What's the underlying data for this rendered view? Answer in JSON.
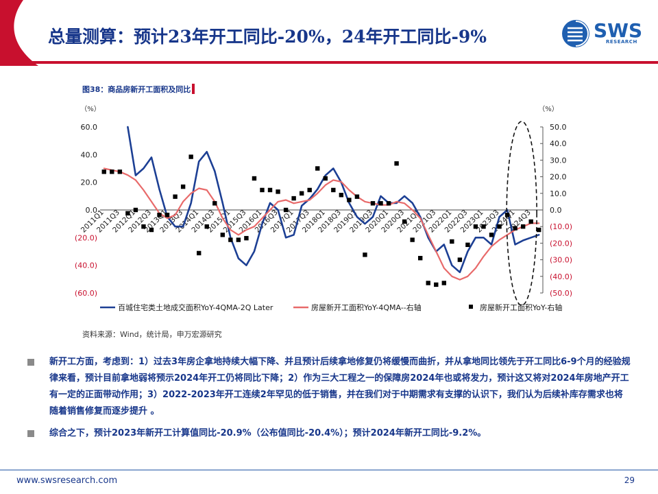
{
  "header": {
    "title": "总量测算：预计23年开工同比-20%，24年开工同比-9%",
    "logo_text": "SWS",
    "logo_subtext": "RESEARCH",
    "brand_color": "#1f5fb0",
    "accent_color": "#c8102e"
  },
  "figure": {
    "caption": "图38：商品房新开工面积及同比",
    "source": "资料来源：Wind，统计局，申万宏源研究"
  },
  "chart_data": {
    "type": "line",
    "title": "",
    "xlabel": "",
    "left_axis": {
      "unit": "（%）",
      "ylim": [
        -60,
        60
      ],
      "ticks": [
        60,
        40,
        20,
        0,
        -20,
        -40,
        -60
      ],
      "tick_labels": [
        "60.0",
        "40.0",
        "20.0",
        "0.0",
        "(20.0)",
        "(40.0)",
        "(60.0)"
      ]
    },
    "right_axis": {
      "unit": "（%）",
      "ylim": [
        -50,
        50
      ],
      "ticks": [
        50,
        40,
        30,
        20,
        10,
        0,
        -10,
        -20,
        -30,
        -40,
        -50
      ],
      "tick_labels": [
        "50.0",
        "40.0",
        "30.0",
        "20.0",
        "10.0",
        "0.0",
        "(10.0)",
        "(20.0)",
        "(30.0)",
        "(40.0)",
        "(50.0)"
      ]
    },
    "x_tick_labels": [
      "2011Q1",
      "2011Q3",
      "2012Q1",
      "2012Q3",
      "2013Q1",
      "2013Q3",
      "2014Q1",
      "2014Q3",
      "2015Q1",
      "2015Q3",
      "2016Q1",
      "2016Q3",
      "2017Q1",
      "2017Q3",
      "2018Q1",
      "2018Q3",
      "2019Q1",
      "2019Q3",
      "2020Q1",
      "2020Q3",
      "2021Q1",
      "2021Q3",
      "2022Q1",
      "2022Q3",
      "2023Q1",
      "2023Q3",
      "2024Q1",
      "2024Q3"
    ],
    "x_quarters": 56,
    "legend_position": "bottom",
    "series": [
      {
        "name": "百城住宅类土地成交面积YoY-4QMA-2Q Later",
        "axis": "left",
        "style": "line",
        "color": "#1c3f94",
        "x": [
          3,
          4,
          5,
          6,
          7,
          8,
          9,
          10,
          11,
          12,
          13,
          14,
          15,
          16,
          17,
          18,
          19,
          20,
          21,
          22,
          23,
          24,
          25,
          26,
          27,
          28,
          29,
          30,
          31,
          32,
          33,
          34,
          35,
          36,
          37,
          38,
          39,
          40,
          41,
          42,
          43,
          44,
          45,
          46,
          47,
          48,
          49,
          50,
          51,
          52,
          53,
          54,
          55
        ],
        "y": [
          60,
          25,
          30,
          38,
          15,
          -5,
          -12,
          -12,
          5,
          35,
          42,
          28,
          5,
          -20,
          -35,
          -40,
          -30,
          -10,
          5,
          0,
          -20,
          -18,
          3,
          8,
          15,
          25,
          30,
          20,
          5,
          -5,
          -10,
          -5,
          10,
          5,
          5,
          10,
          5,
          -5,
          -20,
          -30,
          -25,
          -40,
          -45,
          -30,
          -20,
          -20,
          -25,
          -5,
          0,
          -25,
          -22,
          -20,
          -18
        ]
      },
      {
        "name": "房屋新开工面积YoY-4QMA--右轴",
        "axis": "right",
        "style": "line",
        "color": "#e86a6a",
        "x": [
          0,
          1,
          2,
          3,
          4,
          5,
          6,
          7,
          8,
          9,
          10,
          11,
          12,
          13,
          14,
          15,
          16,
          17,
          18,
          19,
          20,
          21,
          22,
          23,
          24,
          25,
          26,
          27,
          28,
          29,
          30,
          31,
          32,
          33,
          34,
          35,
          36,
          37,
          38,
          39,
          40,
          41,
          42,
          43,
          44,
          45,
          46,
          47,
          48,
          49,
          50,
          51,
          52,
          53,
          54,
          55
        ],
        "y": [
          25,
          24,
          23,
          21,
          18,
          12,
          5,
          -2,
          -5,
          -3,
          5,
          10,
          13,
          12,
          5,
          -5,
          -12,
          -15,
          -12,
          -10,
          -5,
          0,
          5,
          6,
          4,
          5,
          6,
          10,
          15,
          18,
          17,
          12,
          8,
          5,
          4,
          3,
          3,
          5,
          4,
          0,
          -5,
          -15,
          -25,
          -35,
          -40,
          -42,
          -40,
          -35,
          -28,
          -22,
          -18,
          -15,
          -12,
          -10,
          -8,
          -8
        ]
      },
      {
        "name": "房屋新开工面积YoY-右轴",
        "axis": "right",
        "style": "scatter",
        "color": "#000000",
        "x": [
          0,
          1,
          2,
          3,
          4,
          5,
          6,
          7,
          8,
          9,
          10,
          11,
          12,
          13,
          14,
          15,
          16,
          17,
          18,
          19,
          20,
          21,
          22,
          23,
          24,
          25,
          26,
          27,
          28,
          29,
          30,
          31,
          32,
          33,
          34,
          35,
          36,
          37,
          38,
          39,
          40,
          41,
          42,
          43,
          44,
          45,
          46,
          47,
          48,
          49,
          50,
          51,
          52,
          53,
          54,
          55
        ],
        "y": [
          23,
          23,
          23,
          -2,
          0,
          -10,
          -12,
          -3,
          -3,
          8,
          14,
          32,
          -26,
          -10,
          4,
          -15,
          -18,
          -18,
          -17,
          19,
          12,
          12,
          11,
          0,
          7,
          10,
          12,
          25,
          19,
          12,
          9,
          6,
          8,
          -27,
          4,
          4,
          4,
          28,
          -7,
          -18,
          -29,
          -44,
          -45,
          -44,
          -19,
          -30,
          -21,
          -10,
          -10,
          -15,
          -10,
          -3,
          -11,
          -10,
          -7,
          -12
        ]
      }
    ],
    "annotation": {
      "shape": "dashed-ellipse",
      "around": "2024Q1-2024Q3"
    }
  },
  "legend": [
    {
      "label": "百城住宅类土地成交面积YoY-4QMA-2Q Later",
      "kind": "line",
      "color": "#1c3f94"
    },
    {
      "label": "房屋新开工面积YoY-4QMA--右轴",
      "kind": "line",
      "color": "#e86a6a"
    },
    {
      "label": "房屋新开工面积YoY-右轴",
      "kind": "marker",
      "color": "#000000"
    }
  ],
  "bullets": [
    "新开工方面，考虑到：1）过去3年房企拿地持续大幅下降、并且预计后续拿地修复仍将缓慢而曲折，并从拿地同比领先于开工同比6-9个月的经验规律来看，预计目前拿地弱将预示2024年开工仍将同比下降；2）作为三大工程之一的保障房2024年也或将发力，预计这又将对2024年房地产开工有一定的正面带动作用；3）2022-2023年开工连续2年罕见的低于销售，并在我们对于中期需求有支撑的认识下，我们认为后续补库存需求也将随着销售修复而逐步提升 。",
    "综合之下，预计2023年新开工计算值同比-20.9%（公布值同比-20.4%）；预计2024年新开工同比-9.2%。"
  ],
  "footer": {
    "url": "www.swsresearch.com",
    "page": "29"
  }
}
